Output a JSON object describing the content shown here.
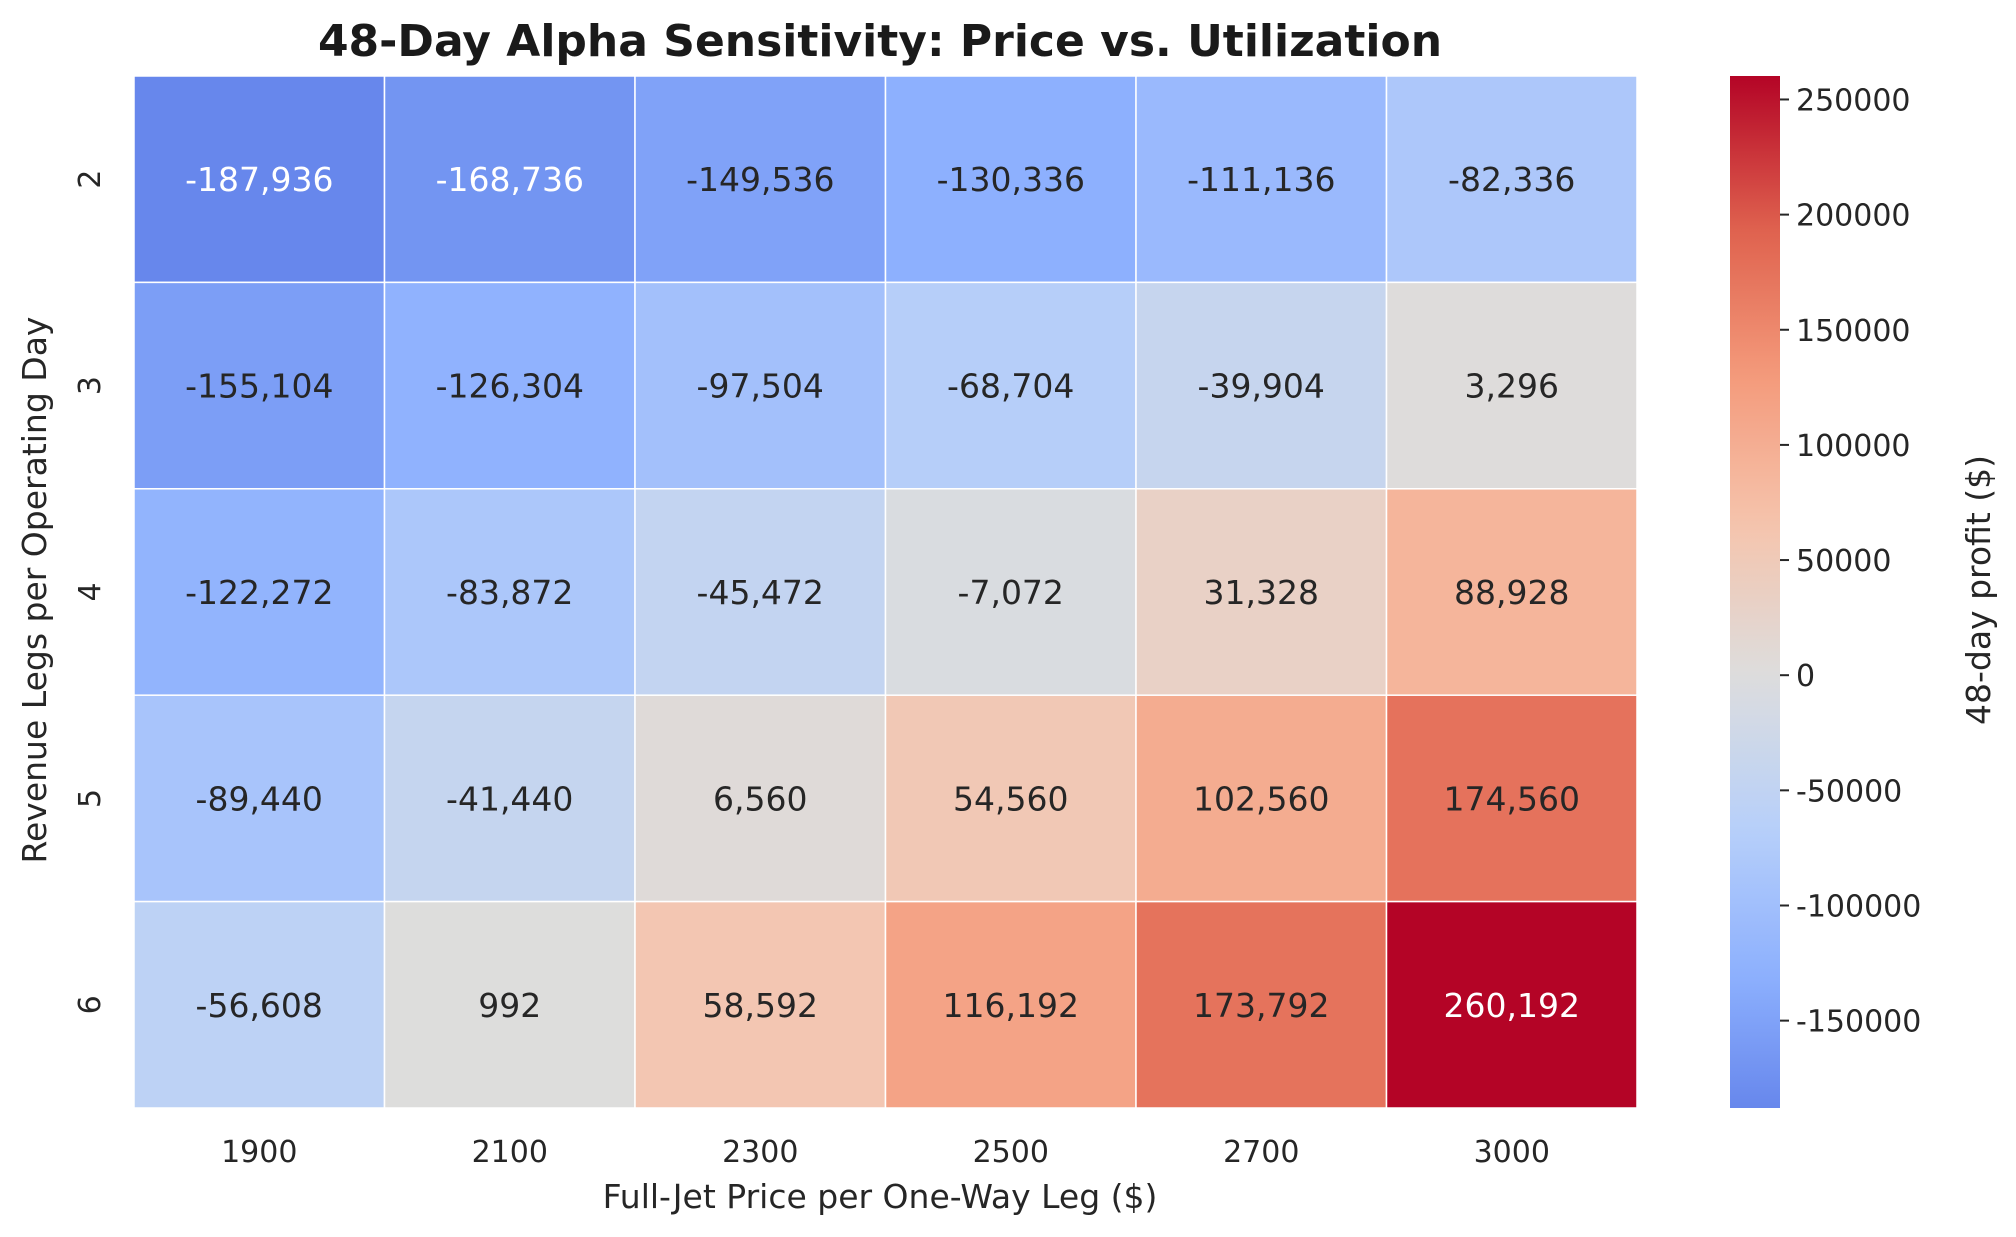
{
  "chart_data": {
    "type": "heatmap",
    "title": "48-Day Alpha Sensitivity: Price vs. Utilization",
    "xlabel": "Full-Jet Price per One-Way Leg ($)",
    "ylabel": "Revenue Legs per Operating Day",
    "x": [
      "1900",
      "2100",
      "2300",
      "2500",
      "2700",
      "3000"
    ],
    "y": [
      "2",
      "3",
      "4",
      "5",
      "6"
    ],
    "values": [
      [
        -187936,
        -168736,
        -149536,
        -130336,
        -111136,
        -82336
      ],
      [
        -155104,
        -126304,
        -97504,
        -68704,
        -39904,
        3296
      ],
      [
        -122272,
        -83872,
        -45472,
        -7072,
        31328,
        88928
      ],
      [
        -89440,
        -41440,
        6560,
        54560,
        102560,
        174560
      ],
      [
        -56608,
        992,
        58592,
        116192,
        173792,
        260192
      ]
    ],
    "cell_labels": [
      [
        "-187,936",
        "-168,736",
        "-149,536",
        "-130,336",
        "-111,136",
        "-82,336"
      ],
      [
        "-155,104",
        "-126,304",
        "-97,504",
        "-68,704",
        "-39,904",
        "3,296"
      ],
      [
        "-122,272",
        "-83,872",
        "-45,472",
        "-7,072",
        "31,328",
        "88,928"
      ],
      [
        "-89,440",
        "-41,440",
        "6,560",
        "54,560",
        "102,560",
        "174,560"
      ],
      [
        "-56,608",
        "992",
        "58,592",
        "116,192",
        "173,792",
        "260,192"
      ]
    ],
    "colormap": "coolwarm",
    "center": 0,
    "vmin": -187936,
    "vmax": 260192,
    "colorbar": {
      "label": "48-day profit ($)",
      "ticks": [
        -150000,
        -100000,
        -50000,
        0,
        50000,
        100000,
        150000,
        200000,
        250000
      ],
      "tick_labels": [
        "-150000",
        "-100000",
        "-50000",
        "0",
        "50000",
        "100000",
        "150000",
        "200000",
        "250000"
      ]
    },
    "grid": false
  }
}
